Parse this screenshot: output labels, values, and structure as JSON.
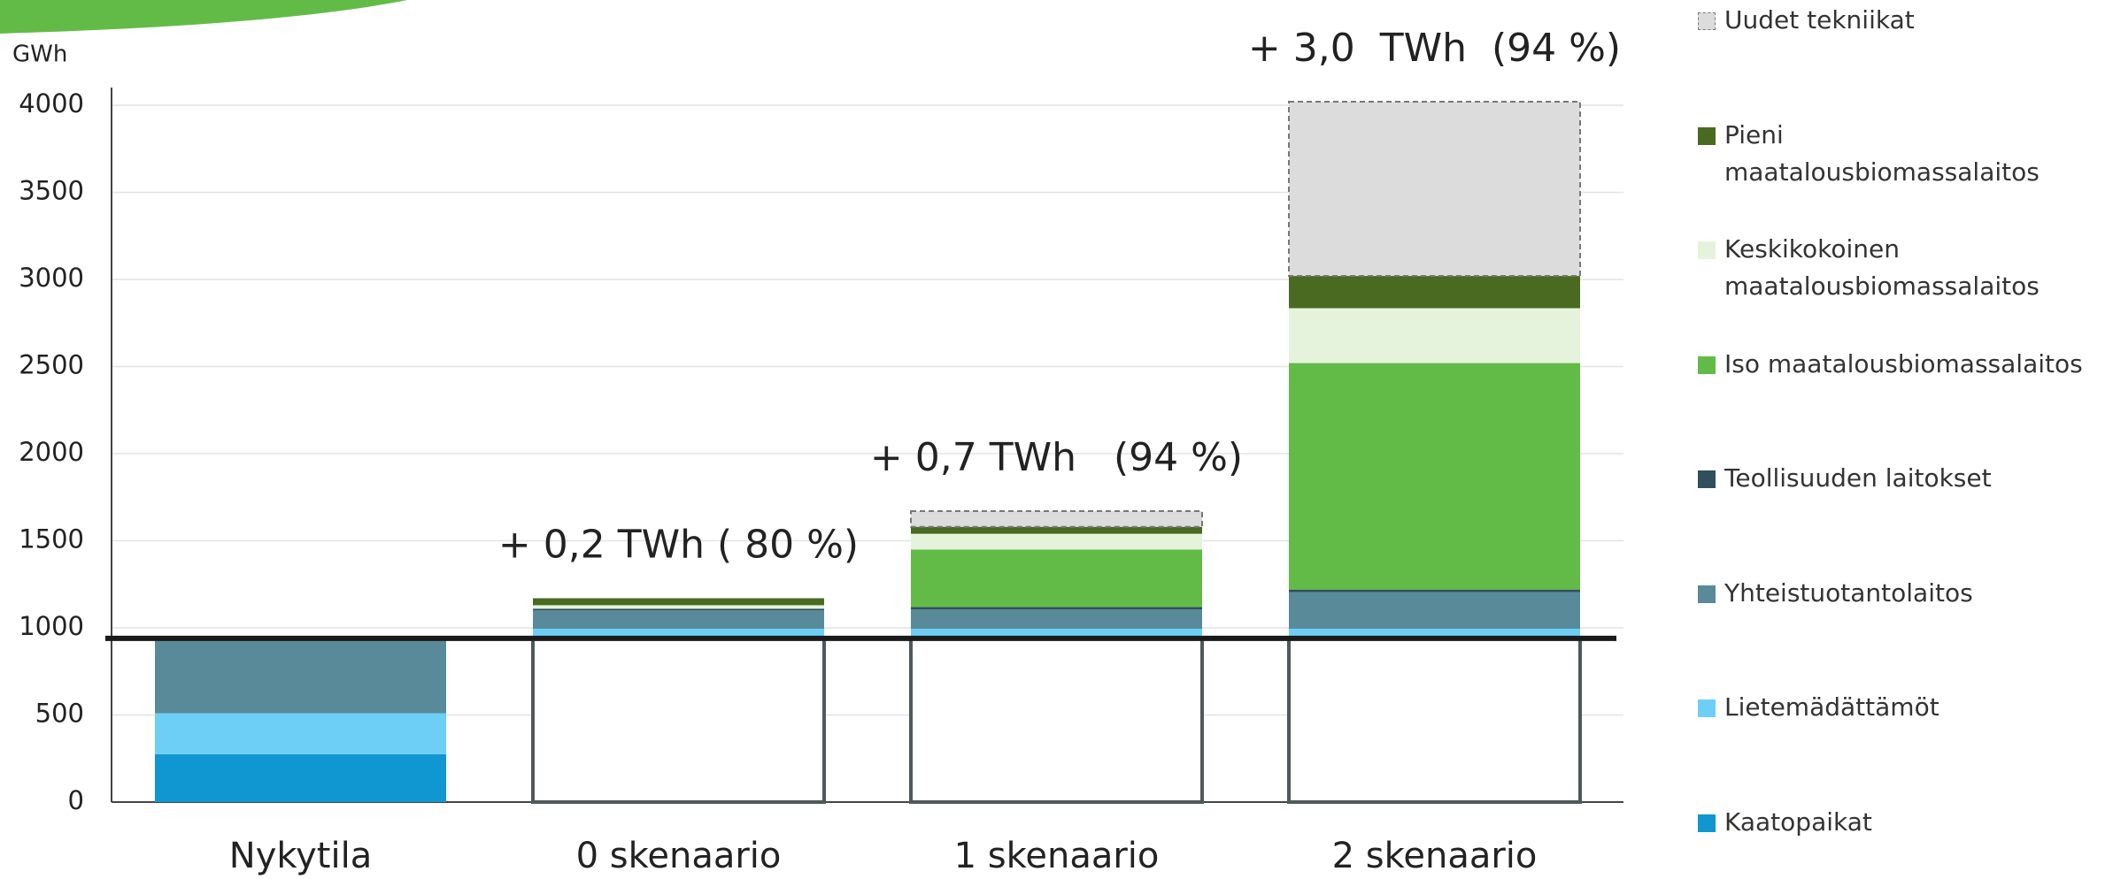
{
  "chart_data": {
    "type": "stacked_bar",
    "y_label": "GWh",
    "categories": [
      "Nykytila",
      "0 skenaario",
      "1 skenaario",
      "2 skenaario"
    ],
    "series": [
      {
        "color": "#ffffff",
        "outline": "#4d5a59",
        "values": [
          null,
          940,
          940,
          940
        ]
      },
      {
        "name": "Kaatopaikat",
        "color": "#1096d0",
        "values": [
          275,
          0,
          0,
          0
        ]
      },
      {
        "name": "Lietemädättämöt",
        "color": "#6dcff6",
        "values": [
          235,
          55,
          55,
          55
        ]
      },
      {
        "name": "Yhteistuotantolaitos",
        "color": "#588a9a",
        "values": [
          430,
          105,
          110,
          210
        ]
      },
      {
        "name": "Teollisuuden laitokset",
        "color": "#2f4f5c",
        "values": [
          10,
          10,
          15,
          15
        ]
      },
      {
        "name": "Iso maatalousbiomassalaitos",
        "color": "#63bb47",
        "values": [
          0,
          0,
          330,
          1300
        ]
      },
      {
        "name": "Keskikokoinen maatalousbiomassalaitos",
        "color": "#e5f3dc",
        "values": [
          0,
          20,
          90,
          315
        ]
      },
      {
        "name": "Pieni maatalousbiomassalaitos",
        "color": "#4a6a22",
        "values": [
          0,
          40,
          40,
          185
        ]
      },
      {
        "name": "Uudet tekniikat",
        "color": "#dcdcdc",
        "dashed": true,
        "values": [
          0,
          0,
          90,
          1000
        ]
      }
    ],
    "reference_line": 940,
    "annotations": [
      {
        "text": "+ 0,2 TWh ( 80 %)",
        "category": "0 skenaario"
      },
      {
        "text": "+ 0,7 TWh   (94 %)",
        "category": "1 skenaario"
      },
      {
        "text": "+ 3,0  TWh  (94 %)",
        "category": "2 skenaario"
      }
    ],
    "ylim": [
      0,
      4000
    ],
    "yticks": [
      0,
      500,
      1000,
      1500,
      2000,
      2500,
      3000,
      3500,
      4000
    ],
    "grid": true
  }
}
